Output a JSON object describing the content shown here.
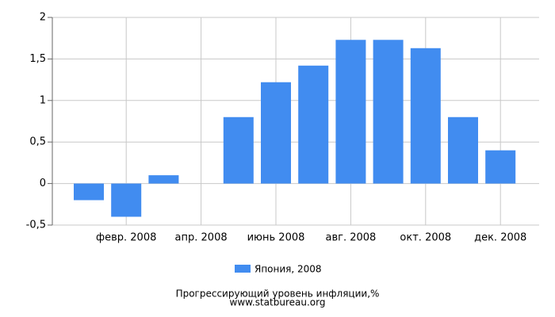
{
  "chart_data": {
    "type": "bar",
    "title": "Прогрессирующий уровень инфляции,%",
    "subtitle": "www.statbureau.org",
    "categories": [
      null,
      "февр. 2008",
      null,
      "апр. 2008",
      null,
      "июнь 2008",
      null,
      "авг. 2008",
      null,
      "окт. 2008",
      null,
      "дек. 2008"
    ],
    "series": [
      {
        "name": "Япония, 2008",
        "color": "#418cf0",
        "values": [
          -0.2,
          -0.4,
          0.1,
          0,
          0.8,
          1.22,
          1.42,
          1.73,
          1.73,
          1.63,
          0.8,
          0.4
        ]
      }
    ],
    "ylim": [
      -0.5,
      2
    ],
    "yticks": [
      {
        "value": -0.5,
        "label": "-0,5"
      },
      0,
      {
        "value": 0.5,
        "label": "0,5"
      },
      1,
      {
        "value": 1.5,
        "label": "1,5"
      },
      2
    ],
    "grid": true
  }
}
